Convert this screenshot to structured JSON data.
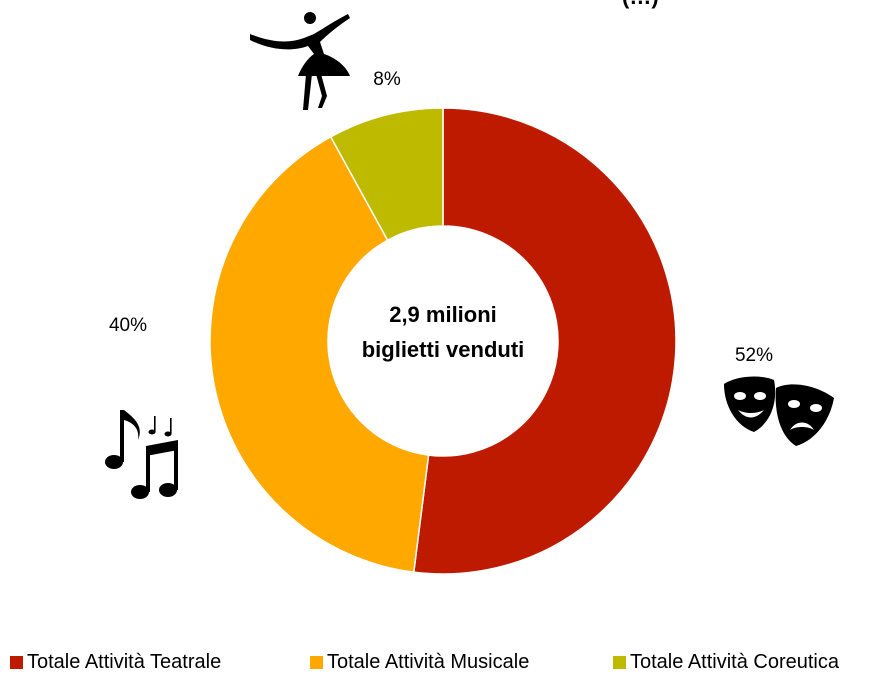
{
  "title_fragment": "(…)",
  "center_label": {
    "line1": "2,9 milioni",
    "line2": "biglietti venduti"
  },
  "colors": {
    "teatrale": "#BE1A00",
    "musicale": "#FFA800",
    "coreutica": "#BDBA00"
  },
  "icons": {
    "teatrale": "theater-masks-icon",
    "musicale": "music-notes-icon",
    "coreutica": "ballerina-icon"
  },
  "chart_data": {
    "type": "pie",
    "style": "donut",
    "start": "top, clockwise",
    "categories": [
      "Totale Attività Teatrale",
      "Totale Attività Musicale",
      "Totale Attività Coreutica"
    ],
    "values": [
      52,
      40,
      8
    ],
    "data_labels": [
      "52%",
      "40%",
      "8%"
    ],
    "legend_position": "bottom",
    "title": ""
  }
}
